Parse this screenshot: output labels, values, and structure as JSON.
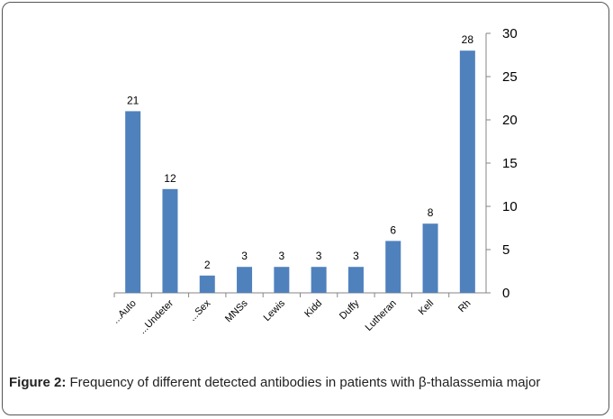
{
  "chart_data": {
    "type": "bar",
    "categories": [
      "...Auto",
      "...Undeter",
      "...Sex",
      "MNSs",
      "Lewis",
      "Kidd",
      "Duffy",
      "Lutheran",
      "Kell",
      "Rh"
    ],
    "values": [
      21,
      12,
      2,
      3,
      3,
      3,
      3,
      6,
      8,
      28
    ],
    "color": "#4f81bd",
    "ylim": [
      0,
      30
    ],
    "yticks": [
      0,
      5,
      10,
      15,
      20,
      25,
      30
    ],
    "grid": false,
    "y_axis_side": "right"
  },
  "caption": {
    "label": "Figure 2:",
    "text": "Frequency of different detected antibodies in patients with β-thalassemia major"
  }
}
